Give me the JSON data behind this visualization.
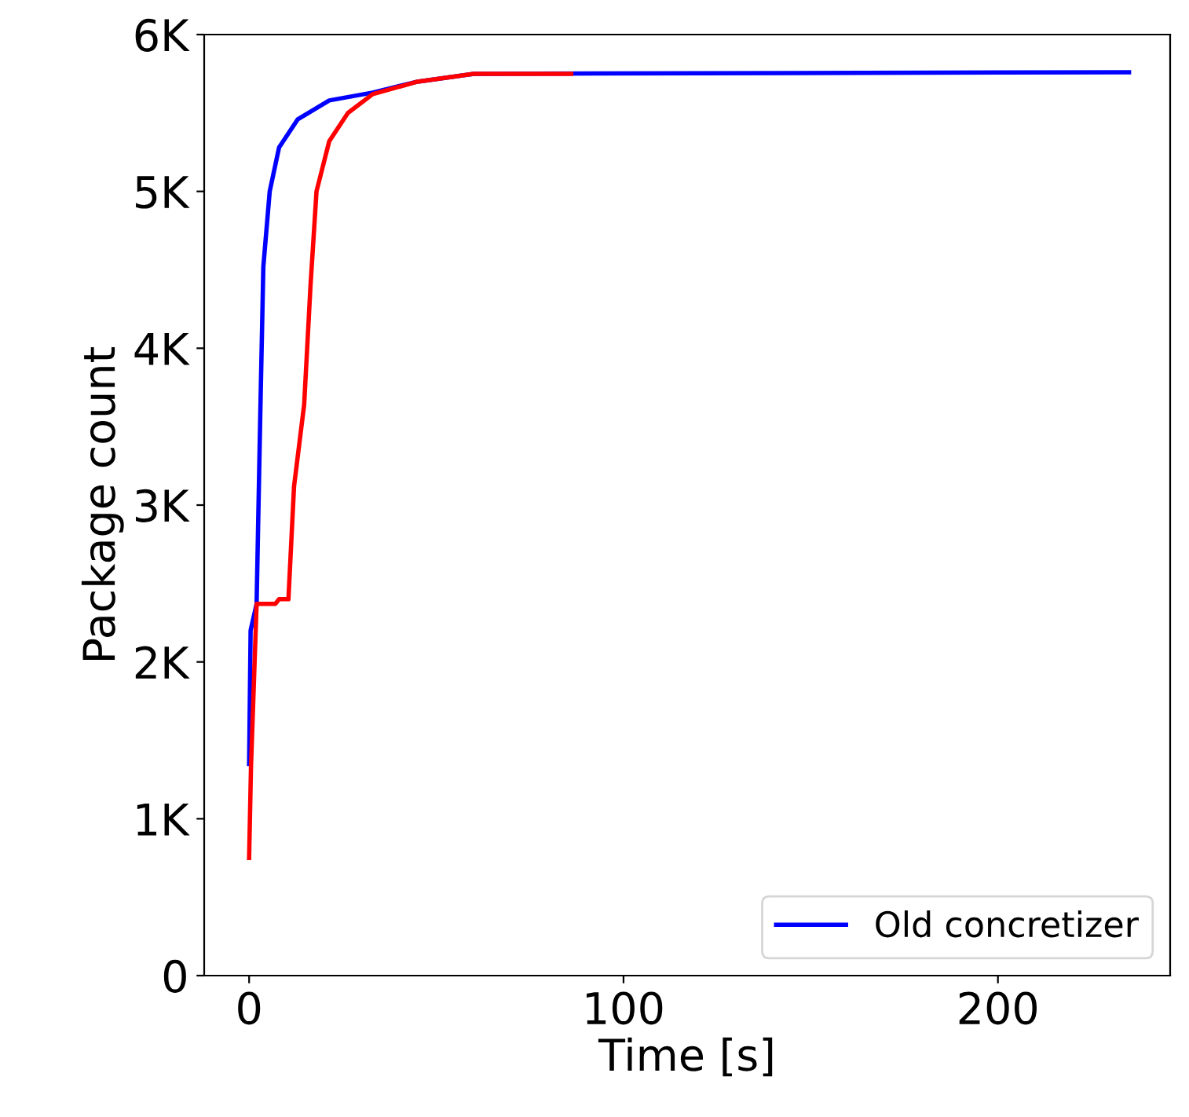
{
  "chart_data": {
    "type": "line",
    "xlabel": "Time [s]",
    "ylabel": "Package count",
    "xlim": [
      -12,
      246
    ],
    "xticks": [
      0,
      100,
      200
    ],
    "ylim": [
      0,
      6000
    ],
    "yticks": [
      0,
      {
        "value": 1000,
        "label": "1K"
      },
      {
        "value": 2000,
        "label": "2K"
      },
      {
        "value": 3000,
        "label": "3K"
      },
      {
        "value": 4000,
        "label": "4K"
      },
      {
        "value": 5000,
        "label": "5K"
      },
      {
        "value": 6000,
        "label": "6K"
      }
    ],
    "grid": false,
    "legend": "bottom right",
    "marker": "none",
    "line_style": "solid",
    "series": [
      {
        "color": "#ff0000",
        "x": [
          0,
          0.5,
          2,
          7,
          8,
          10.5,
          12,
          14.7,
          16.4,
          18,
          21.4,
          26.4,
          33,
          45,
          60,
          86
        ],
        "values": [
          750,
          1330,
          2370,
          2370,
          2400,
          2400,
          3120,
          3640,
          4400,
          5000,
          5320,
          5500,
          5620,
          5700,
          5750,
          5750
        ]
      },
      {
        "name": "Old concretizer",
        "color": "#0000ff",
        "x": [
          0,
          0.4,
          2,
          3,
          3.8,
          5.5,
          8,
          13,
          21.4,
          33,
          45,
          60,
          235
        ],
        "values": [
          1350,
          2200,
          2370,
          3600,
          4520,
          5000,
          5280,
          5460,
          5580,
          5630,
          5700,
          5750,
          5760
        ]
      }
    ]
  }
}
